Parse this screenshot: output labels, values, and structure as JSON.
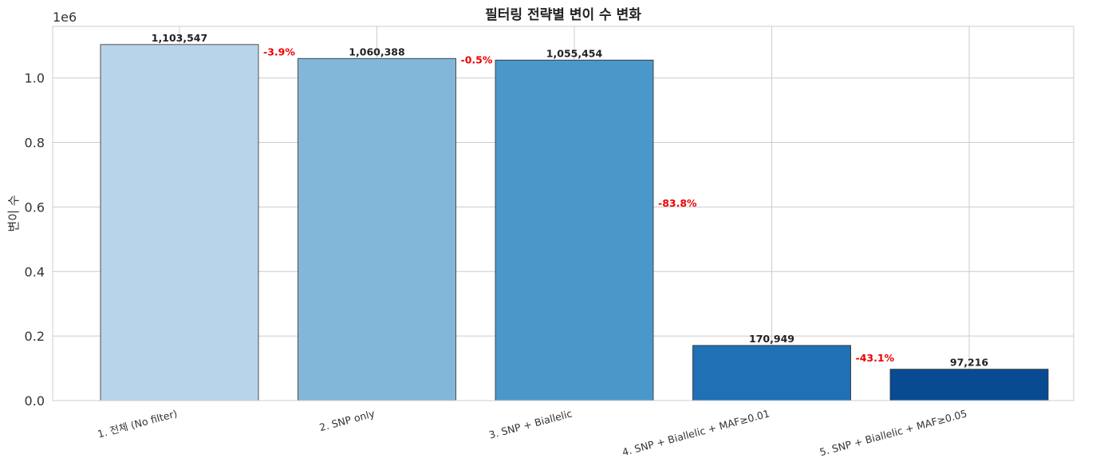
{
  "chart_data": {
    "type": "bar",
    "title": "필터링 전략별 변이 수 변화",
    "xlabel": "",
    "ylabel": "변이 수",
    "y_multiplier_label": "1e6",
    "ylim": [
      0,
      1160000
    ],
    "yticks": [
      0,
      200000,
      400000,
      600000,
      800000,
      1000000
    ],
    "ytick_labels": [
      "0.0",
      "0.2",
      "0.4",
      "0.6",
      "0.8",
      "1.0"
    ],
    "grid": true,
    "categories": [
      "1. 전체 (No filter)",
      "2. SNP only",
      "3. SNP + Biallelic",
      "4. SNP + Biallelic + MAF≥0.01",
      "5. SNP + Biallelic + MAF≥0.05"
    ],
    "values": [
      1103547,
      1060388,
      1055454,
      170949,
      97216
    ],
    "value_labels": [
      "1,103,547",
      "1,060,388",
      "1,055,454",
      "170,949",
      "97,216"
    ],
    "pct_changes": [
      "-3.9%",
      "-0.5%",
      "-83.8%",
      "-43.1%"
    ],
    "colors": [
      "#b7d4ea",
      "#82b7d9",
      "#4a98c9",
      "#2070b4",
      "#084b93"
    ]
  }
}
